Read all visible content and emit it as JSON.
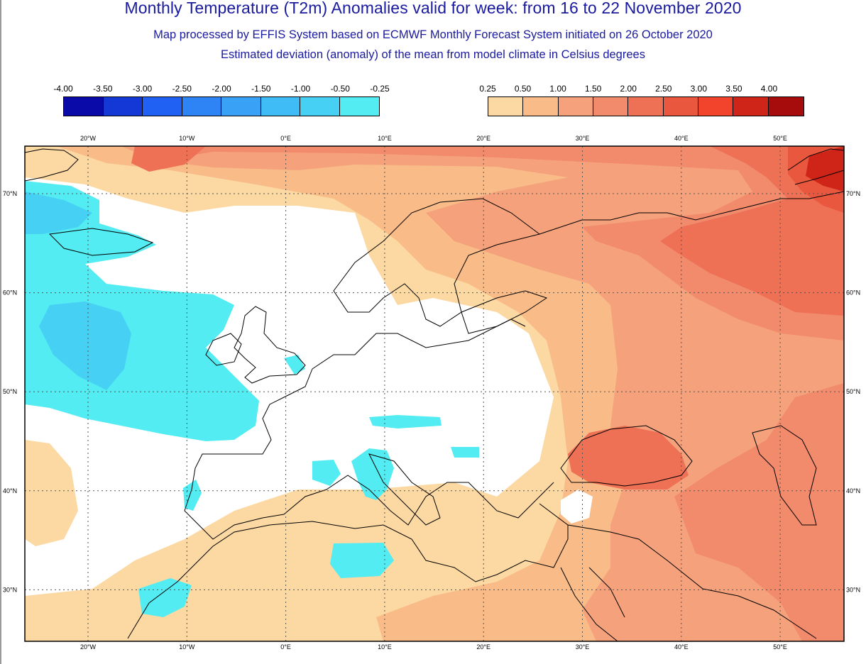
{
  "title": "Monthly Temperature (T2m) Anomalies valid for week: from 16 to 22 November 2020",
  "subtitle_1": "Map processed by EFFIS System based on ECMWF Monthly Forecast System initiated on 26 October 2020",
  "subtitle_2": "Estimated deviation (anomaly) of the mean from model climate in Celsius degrees",
  "legend_negative": {
    "labels": [
      "-4.00",
      "-3.50",
      "-3.00",
      "-2.50",
      "-2.00",
      "-1.50",
      "-1.00",
      "-0.50",
      "-0.25"
    ],
    "colors": [
      "#0a0aa8",
      "#1438d6",
      "#2060f2",
      "#2e84f5",
      "#3aa2f6",
      "#3fbcf6",
      "#45d0f4",
      "#52ecf2"
    ]
  },
  "legend_positive": {
    "labels": [
      "0.25",
      "0.50",
      "1.00",
      "1.50",
      "2.00",
      "2.50",
      "3.00",
      "3.50",
      "4.00"
    ],
    "colors": [
      "#fcd9a3",
      "#f9bc88",
      "#f5a27c",
      "#f28a6c",
      "#ee7055",
      "#ea573f",
      "#f2432c",
      "#cf2519",
      "#a60c0c"
    ]
  },
  "map": {
    "lon_labels": [
      "20°W",
      "10°W",
      "0°E",
      "10°E",
      "20°E",
      "30°E",
      "40°E",
      "50°E"
    ],
    "lat_labels": [
      "70°N",
      "60°N",
      "50°N",
      "40°N",
      "30°N"
    ],
    "colors": {
      "neutral": "#ffffff",
      "cold_1": "#52ecf2",
      "cold_2": "#45d0f4",
      "warm_1": "#fcd9a3",
      "warm_2": "#f9bc88",
      "warm_3": "#f5a27c",
      "warm_4": "#f28a6c",
      "warm_5": "#ee7055",
      "warm_6": "#ea573f",
      "warm_7": "#cf2519",
      "warm_8": "#a60c0c",
      "coast": "#000000",
      "grid": "#555555"
    }
  }
}
